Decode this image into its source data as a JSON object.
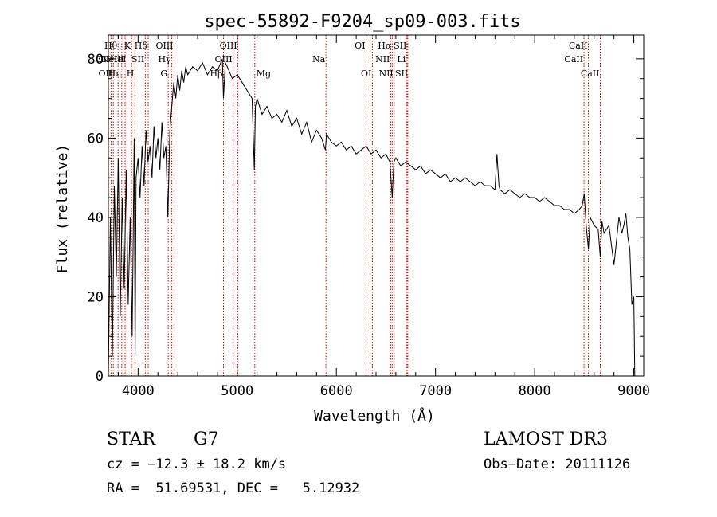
{
  "chart_data": {
    "type": "line",
    "title": "spec-55892-F9204_sp09-003.fits",
    "xlabel": "Wavelength (Å)",
    "ylabel": "Flux (relative)",
    "xlim": [
      3700,
      9100
    ],
    "ylim": [
      0,
      86
    ],
    "xticks": [
      4000,
      5000,
      6000,
      7000,
      8000,
      9000
    ],
    "yticks": [
      0,
      20,
      40,
      60,
      80
    ],
    "series": [
      {
        "name": "flux",
        "x": [
          3700,
          3720,
          3740,
          3760,
          3780,
          3800,
          3820,
          3840,
          3860,
          3880,
          3900,
          3920,
          3940,
          3960,
          3970,
          3980,
          4000,
          4020,
          4040,
          4060,
          4080,
          4100,
          4120,
          4140,
          4160,
          4180,
          4200,
          4220,
          4240,
          4260,
          4280,
          4300,
          4320,
          4340,
          4360,
          4380,
          4400,
          4420,
          4440,
          4460,
          4480,
          4500,
          4550,
          4600,
          4650,
          4700,
          4750,
          4800,
          4850,
          4861,
          4880,
          4900,
          4950,
          5000,
          5050,
          5100,
          5150,
          5172,
          5183,
          5200,
          5250,
          5300,
          5350,
          5400,
          5450,
          5500,
          5550,
          5600,
          5650,
          5700,
          5750,
          5800,
          5850,
          5890,
          5900,
          5950,
          6000,
          6050,
          6100,
          6150,
          6200,
          6250,
          6300,
          6350,
          6400,
          6450,
          6500,
          6540,
          6563,
          6580,
          6600,
          6650,
          6700,
          6750,
          6800,
          6850,
          6900,
          6950,
          7000,
          7050,
          7100,
          7150,
          7200,
          7250,
          7300,
          7350,
          7400,
          7450,
          7500,
          7550,
          7600,
          7620,
          7640,
          7650,
          7700,
          7750,
          7800,
          7850,
          7900,
          7950,
          8000,
          8050,
          8100,
          8150,
          8200,
          8250,
          8300,
          8350,
          8400,
          8450,
          8480,
          8500,
          8520,
          8542,
          8560,
          8600,
          8640,
          8662,
          8680,
          8700,
          8750,
          8800,
          8850,
          8880,
          8900,
          8920,
          8940,
          8960,
          8980,
          9000,
          9010
        ],
        "y": [
          0,
          40,
          5,
          48,
          25,
          55,
          15,
          45,
          22,
          52,
          18,
          40,
          10,
          60,
          5,
          50,
          55,
          45,
          58,
          48,
          62,
          54,
          58,
          50,
          63,
          55,
          60,
          52,
          64,
          55,
          58,
          40,
          62,
          68,
          74,
          70,
          76,
          72,
          77,
          74,
          78,
          76,
          78,
          77,
          79,
          76,
          78,
          77,
          80,
          70,
          79,
          78,
          75,
          76,
          74,
          72,
          70,
          52,
          68,
          70,
          66,
          68,
          65,
          66,
          64,
          67,
          63,
          65,
          61,
          64,
          59,
          62,
          60,
          57,
          61,
          59,
          58,
          59,
          57,
          58,
          56,
          57,
          58,
          56,
          57,
          55,
          56,
          54,
          45,
          54,
          55,
          53,
          54,
          53,
          52,
          53,
          51,
          52,
          51,
          50,
          51,
          49,
          50,
          49,
          50,
          49,
          48,
          49,
          48,
          48,
          47,
          56,
          48,
          47,
          46,
          47,
          46,
          45,
          46,
          45,
          45,
          44,
          45,
          44,
          43,
          43,
          42,
          42,
          41,
          42,
          43,
          46,
          38,
          32,
          40,
          38,
          37,
          30,
          39,
          36,
          38,
          28,
          40,
          36,
          38,
          41,
          35,
          32,
          18,
          20,
          0
        ]
      }
    ],
    "lines": [
      {
        "wave": 3727,
        "label": "OII",
        "row": 2,
        "side": "left"
      },
      {
        "wave": 3750,
        "label": "OII",
        "row": 3,
        "side": "left"
      },
      {
        "wave": 3798,
        "label": "Hθ",
        "row": 1,
        "side": "left"
      },
      {
        "wave": 3835,
        "label": "Hη",
        "row": 3,
        "side": "left"
      },
      {
        "wave": 3869,
        "label": "NeIII",
        "row": 2,
        "side": "left"
      },
      {
        "wave": 3889,
        "label": "HeI",
        "row": 2,
        "side": "left"
      },
      {
        "wave": 3934,
        "label": "K",
        "row": 1,
        "side": "left"
      },
      {
        "wave": 3968,
        "label": "H",
        "row": 3,
        "side": "left"
      },
      {
        "wave": 4072,
        "label": "SII",
        "row": 2,
        "side": "left"
      },
      {
        "wave": 4102,
        "label": "Hδ",
        "row": 1,
        "side": "left"
      },
      {
        "wave": 4304,
        "label": "G",
        "row": 3,
        "side": "left"
      },
      {
        "wave": 4340,
        "label": "Hγ",
        "row": 2,
        "side": "left"
      },
      {
        "wave": 4363,
        "label": "OIII",
        "row": 1,
        "side": "left"
      },
      {
        "wave": 4861,
        "label": "Hβ",
        "row": 3,
        "side": "left"
      },
      {
        "wave": 4959,
        "label": "OIII",
        "row": 2,
        "side": "left"
      },
      {
        "wave": 5007,
        "label": "OIII",
        "row": 1,
        "side": "left"
      },
      {
        "wave": 5177,
        "label": "Mg",
        "row": 3,
        "side": "right"
      },
      {
        "wave": 5895,
        "label": "Na",
        "row": 2,
        "side": "left"
      },
      {
        "wave": 6300,
        "label": "OI",
        "row": 1,
        "side": "left"
      },
      {
        "wave": 6363,
        "label": "OI",
        "row": 3,
        "side": "left"
      },
      {
        "wave": 6548,
        "label": "NII",
        "row": 2,
        "side": "left"
      },
      {
        "wave": 6563,
        "label": "Hα",
        "row": 1,
        "side": "left"
      },
      {
        "wave": 6583,
        "label": "NII",
        "row": 3,
        "side": "left"
      },
      {
        "wave": 6707,
        "label": "Li",
        "row": 2,
        "side": "left"
      },
      {
        "wave": 6716,
        "label": "SII",
        "row": 1,
        "side": "left"
      },
      {
        "wave": 6731,
        "label": "SII",
        "row": 3,
        "side": "left"
      },
      {
        "wave": 8498,
        "label": "CaII",
        "row": 2,
        "side": "left"
      },
      {
        "wave": 8542,
        "label": "CaII",
        "row": 1,
        "side": "left"
      },
      {
        "wave": 8662,
        "label": "CaII",
        "row": 3,
        "side": "left"
      }
    ],
    "annotations": {
      "object_class": "STAR",
      "subclass": "G7",
      "survey": "LAMOST DR3",
      "redshift": "cz = −12.3 ± 18.2 km/s",
      "obs_date": "Obs−Date: 20111126",
      "coords": "RA =  51.69531, DEC =   5.12932"
    },
    "colors": {
      "line_marker": "#c00000",
      "axis": "#000000",
      "spectrum": "#000000",
      "background": "#ffffff"
    }
  }
}
